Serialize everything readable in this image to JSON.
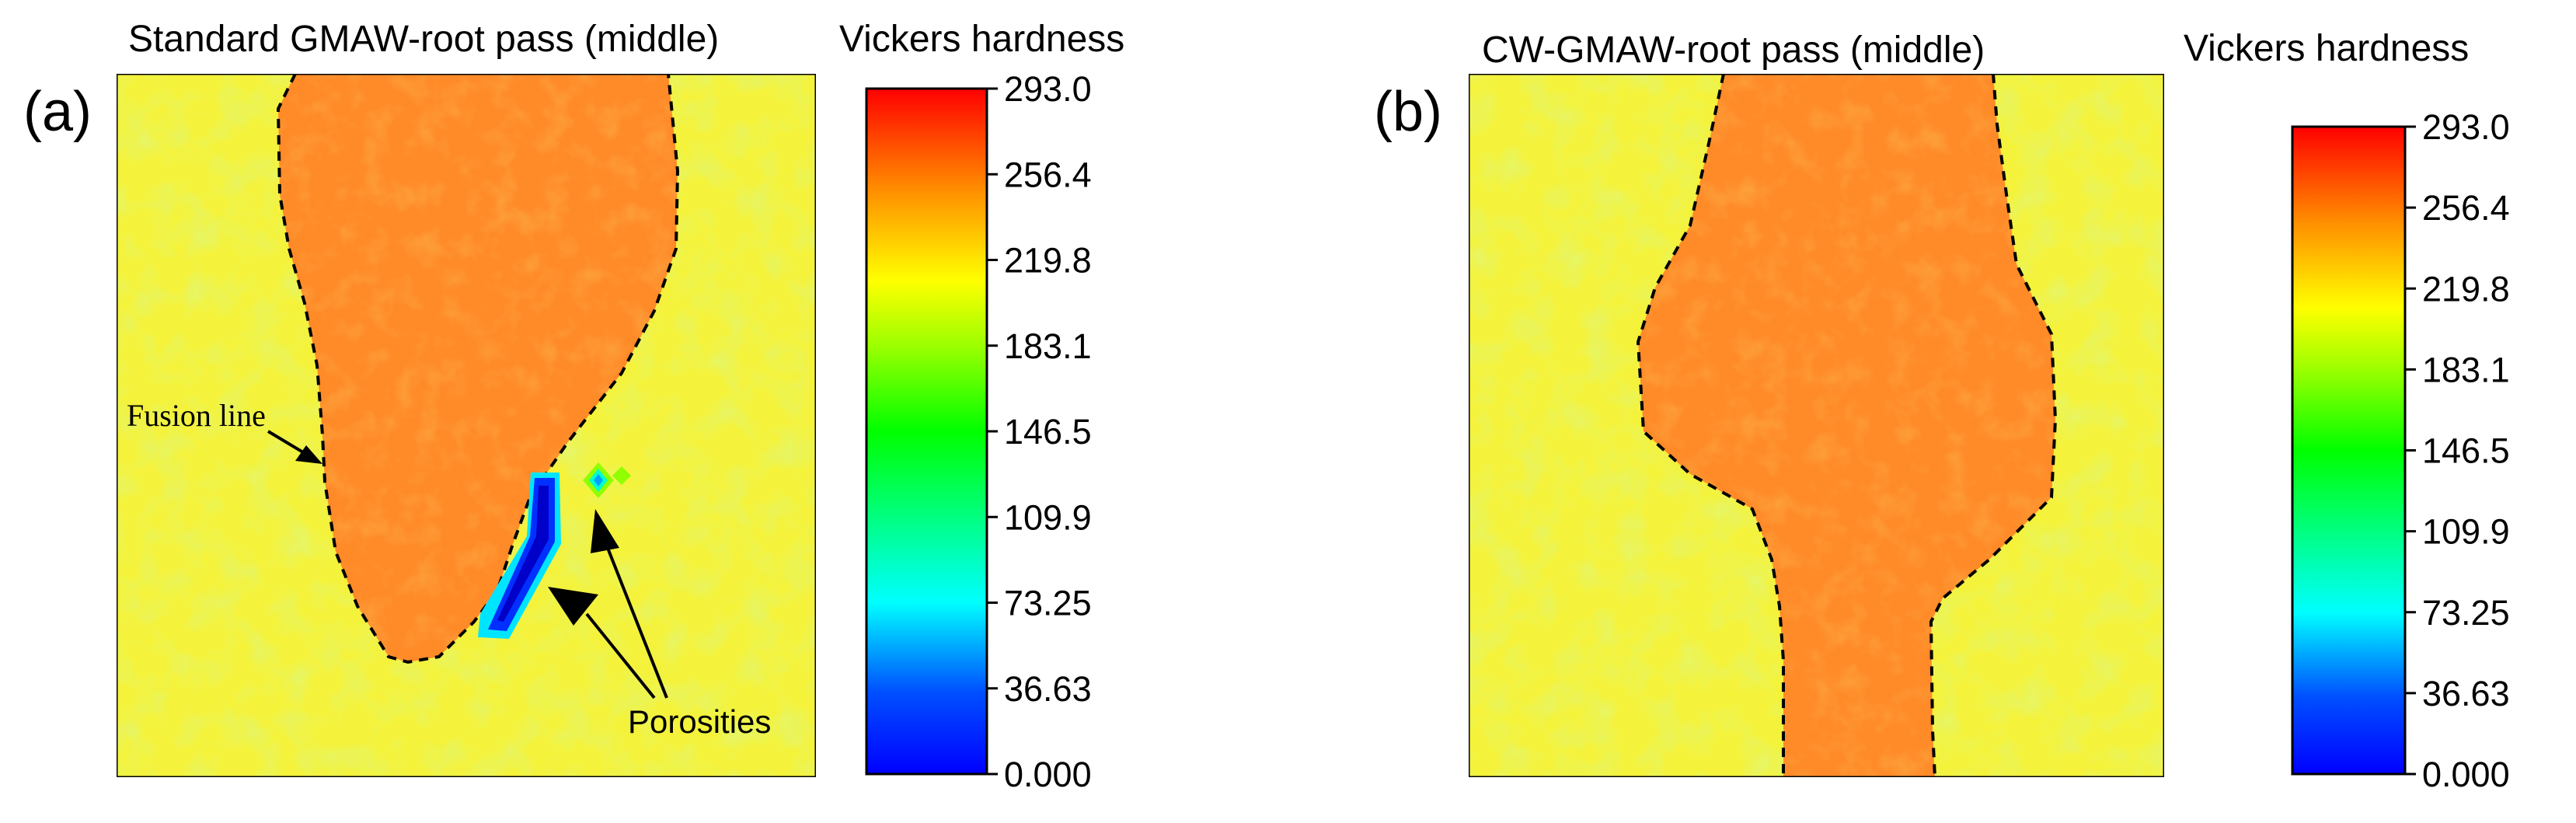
{
  "chart_data": [
    {
      "type": "heatmap",
      "panel_label": "(a)",
      "title": "Standard GMAW-root pass (middle)",
      "colorbar_title": "Vickers hardness",
      "colorbar_ticks": [
        "293.0",
        "256.4",
        "219.8",
        "183.1",
        "146.5",
        "109.9",
        "73.25",
        "36.63",
        "0.000"
      ],
      "value_range": [
        0.0,
        293.0
      ],
      "background_value": 225,
      "weld_zone_value": 262,
      "annotations": [
        "Fusion line",
        "Porosities"
      ]
    },
    {
      "type": "heatmap",
      "panel_label": "(b)",
      "title": "CW-GMAW-root pass (middle)",
      "colorbar_title": "Vickers hardness",
      "colorbar_ticks": [
        "293.0",
        "256.4",
        "219.8",
        "183.1",
        "146.5",
        "109.9",
        "73.25",
        "36.63",
        "0.000"
      ],
      "value_range": [
        0.0,
        293.0
      ],
      "background_value": 225,
      "weld_zone_value": 262,
      "annotations": []
    }
  ]
}
